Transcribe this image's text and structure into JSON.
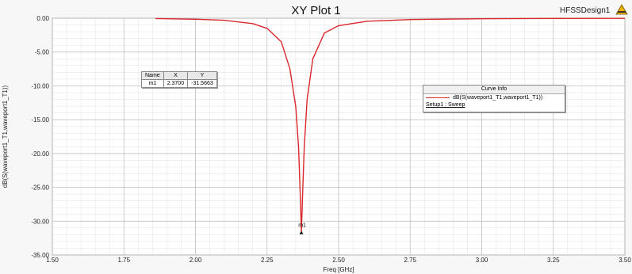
{
  "window": {
    "title": "XY Plot 1",
    "design_name": "HFSSDesign1",
    "logo_icon": "ansys-logo-icon"
  },
  "marker_table": {
    "headers": [
      "Name",
      "X",
      "Y"
    ],
    "row": [
      "m1",
      "2.3700",
      "-31.5663"
    ]
  },
  "curve_info": {
    "title": "Curve Info",
    "trace_label": "dB(S(waveport1_T1,waveport1_T1))",
    "setup_label": "Setup1 : Sweep"
  },
  "marker_label": "m1",
  "colors": {
    "curve": "#d9272c",
    "grid_major": "#b9b9b9",
    "grid_minor": "#e2e2e2",
    "background": "#ffffff"
  },
  "chart_data": {
    "type": "line",
    "title": "XY Plot 1",
    "xlabel": "Freq [GHz]",
    "ylabel": "dB(S(waveport1_T1,waveport1_T1))",
    "xlim": [
      1.5,
      3.5
    ],
    "ylim": [
      -35.0,
      0.0
    ],
    "x_ticks": [
      1.5,
      1.75,
      2.0,
      2.25,
      2.5,
      2.75,
      3.0,
      3.25,
      3.5
    ],
    "x_tick_labels": [
      "1.50",
      "1.75",
      "2.00",
      "2.25",
      "2.50",
      "2.75",
      "3.00",
      "3.25",
      "3.50"
    ],
    "y_ticks": [
      0,
      -5,
      -10,
      -15,
      -20,
      -25,
      -30,
      -35
    ],
    "y_tick_labels": [
      "0.00",
      "-5.00",
      "-10.00",
      "-15.00",
      "-20.00",
      "-25.00",
      "-30.00",
      "-35.00"
    ],
    "grid": true,
    "legend": "right",
    "series": [
      {
        "name": "dB(S(waveport1_T1,waveport1_T1))",
        "x": [
          1.86,
          2.0,
          2.1,
          2.2,
          2.25,
          2.3,
          2.33,
          2.35,
          2.36,
          2.365,
          2.37,
          2.375,
          2.38,
          2.39,
          2.41,
          2.45,
          2.5,
          2.6,
          2.75,
          3.0,
          3.25,
          3.5
        ],
        "y": [
          -0.05,
          -0.15,
          -0.3,
          -0.8,
          -1.5,
          -3.5,
          -7.5,
          -13.0,
          -19.0,
          -25.0,
          -31.57,
          -25.0,
          -19.0,
          -12.0,
          -6.0,
          -2.2,
          -1.1,
          -0.45,
          -0.2,
          -0.08,
          -0.04,
          -0.02
        ]
      }
    ],
    "markers": [
      {
        "name": "m1",
        "x": 2.37,
        "y": -31.5663
      }
    ]
  }
}
